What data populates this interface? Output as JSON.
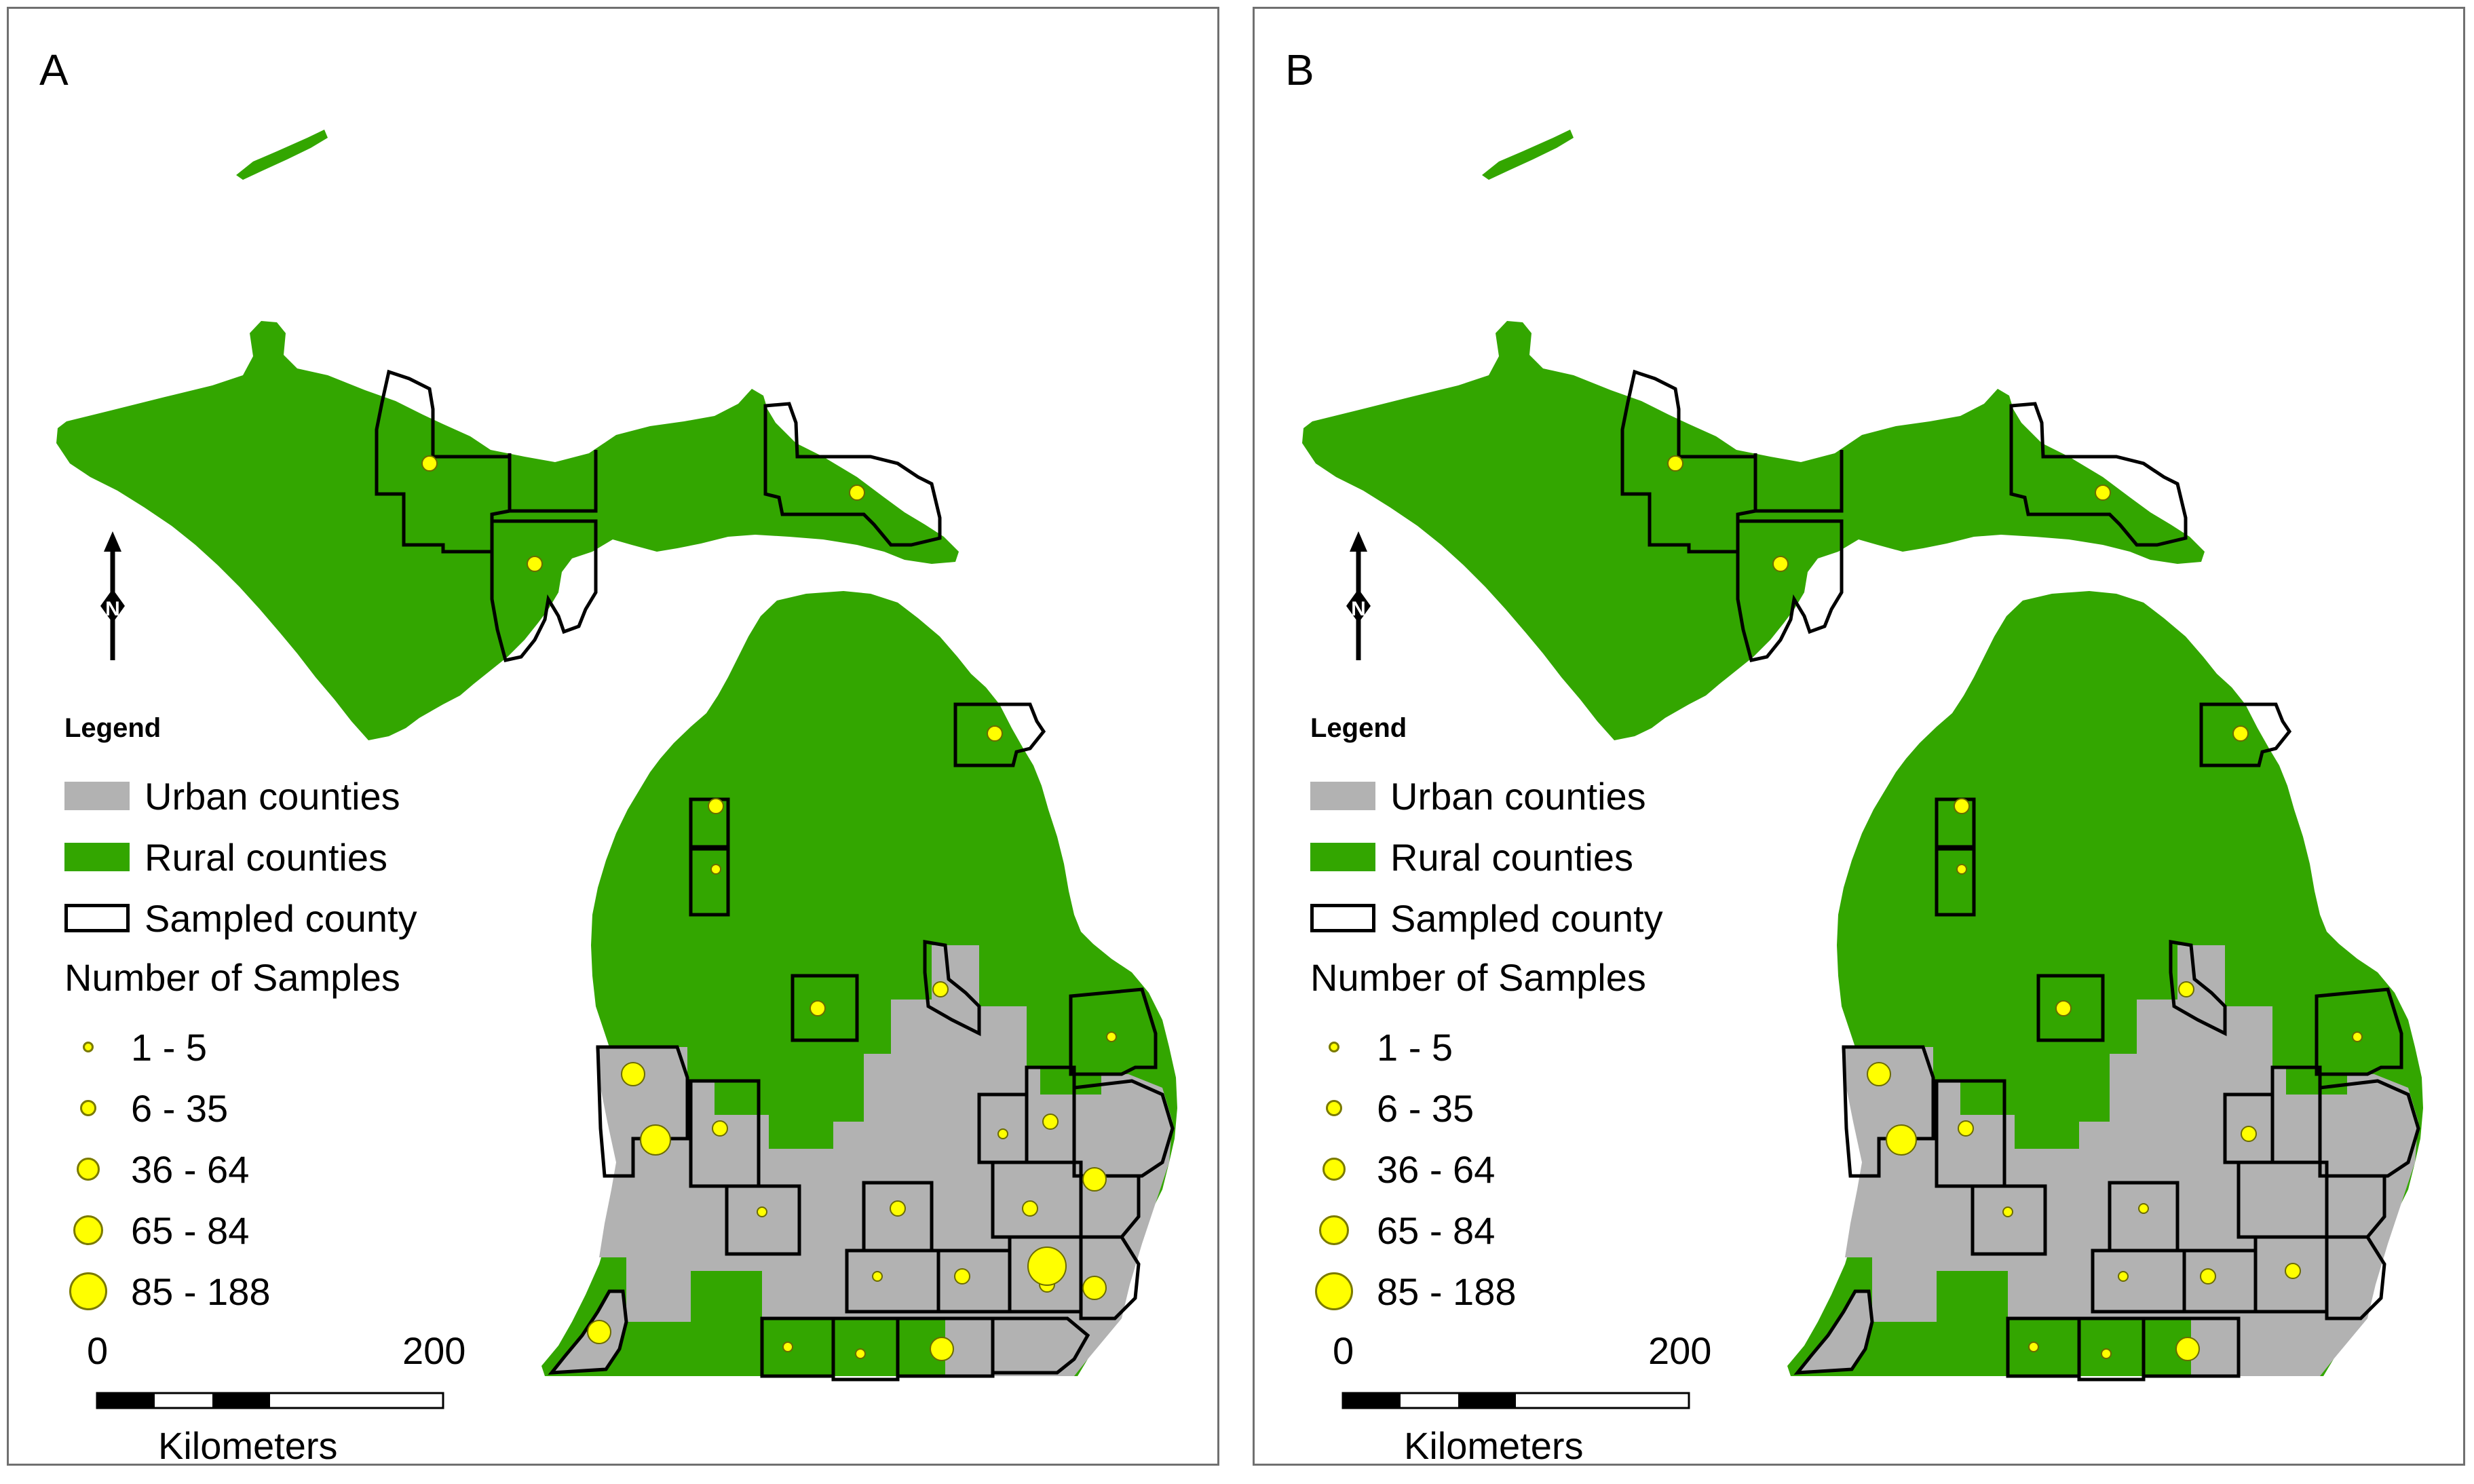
{
  "panels": [
    {
      "id": "A",
      "label": "A",
      "legend": {
        "title": "Legend",
        "items": [
          {
            "label": "Urban counties",
            "color": "#b2b2b2"
          },
          {
            "label": "Rural counties",
            "color": "#33a600"
          },
          {
            "label": "Sampled county",
            "color": "#ffffff"
          }
        ],
        "samples_title": "Number of Samples",
        "classes": [
          "1 - 5",
          "6 - 35",
          "36 - 64",
          "65 - 84",
          "85 - 188"
        ]
      },
      "scale": {
        "start": "0",
        "end": "200",
        "units": "Kilometers"
      },
      "north_arrow_label": "N"
    },
    {
      "id": "B",
      "label": "B",
      "legend": {
        "title": "Legend",
        "items": [
          {
            "label": "Urban counties",
            "color": "#b2b2b2"
          },
          {
            "label": "Rural counties",
            "color": "#33a600"
          },
          {
            "label": "Sampled county",
            "color": "#ffffff"
          }
        ],
        "samples_title": "Number of Samples",
        "classes": [
          "1 - 5",
          "6 - 35",
          "36 - 64",
          "65 - 84",
          "85 - 188"
        ]
      },
      "scale": {
        "start": "0",
        "end": "200",
        "units": "Kilometers"
      },
      "north_arrow_label": "N"
    }
  ],
  "colors": {
    "urban": "#b2b2b2",
    "rural": "#33a600",
    "sample_dot": "#ffff00",
    "border": "#000000"
  },
  "sampled_counties": {
    "A": [
      {
        "class": 2
      },
      {
        "class": 2
      },
      {
        "class": 2
      },
      {
        "class": 2
      },
      {
        "class": 2
      },
      {
        "class": 1
      },
      {
        "class": 2
      },
      {
        "class": 2
      },
      {
        "class": 1
      },
      {
        "class": 3
      },
      {
        "class": 4
      },
      {
        "class": 2
      },
      {
        "class": 1
      },
      {
        "class": 2
      },
      {
        "class": 1
      },
      {
        "class": 2
      },
      {
        "class": 3
      },
      {
        "class": 2
      },
      {
        "class": 1
      },
      {
        "class": 2
      },
      {
        "class": 2
      },
      {
        "class": 5
      },
      {
        "class": 3
      },
      {
        "class": 1
      },
      {
        "class": 1
      },
      {
        "class": 3
      },
      {
        "class": 3
      }
    ],
    "B": [
      {
        "class": 2
      },
      {
        "class": 2
      },
      {
        "class": 2
      },
      {
        "class": 2
      },
      {
        "class": 2
      },
      {
        "class": 1
      },
      {
        "class": 2
      },
      {
        "class": 2
      },
      {
        "class": 1
      },
      {
        "class": 3
      },
      {
        "class": 4
      },
      {
        "class": 2
      },
      {
        "class": 1
      },
      {
        "class": 1
      },
      {
        "class": 2
      },
      {
        "class": 1
      },
      {
        "class": 2
      },
      {
        "class": 2
      },
      {
        "class": 1
      },
      {
        "class": 1
      },
      {
        "class": 3
      }
    ]
  }
}
